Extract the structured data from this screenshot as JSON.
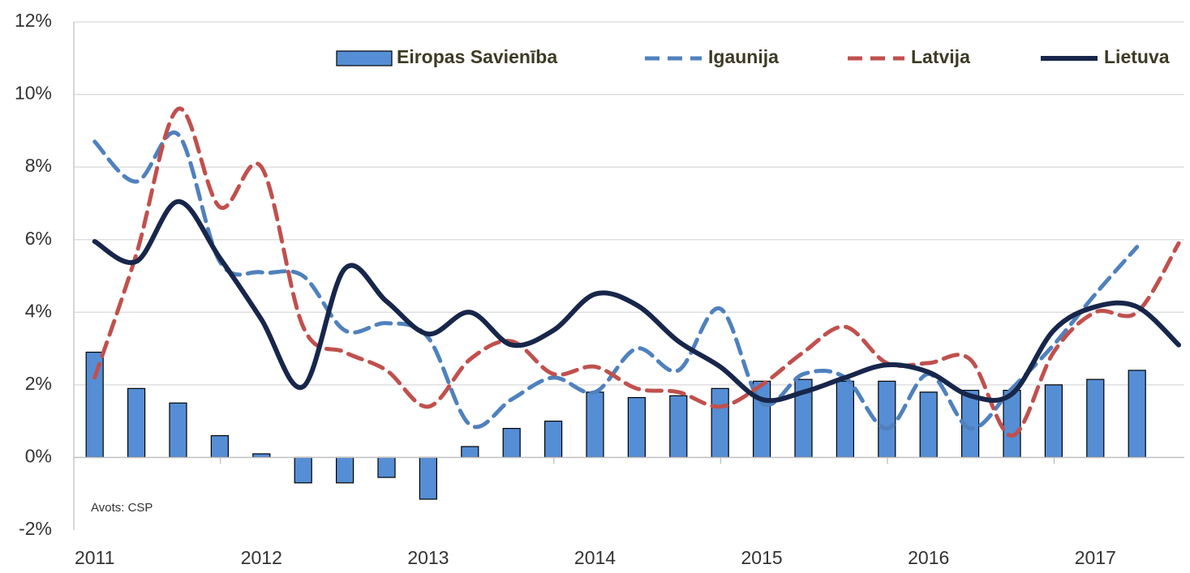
{
  "chart_data": {
    "type": "bar-line",
    "source": "Avots: CSP",
    "categories": [
      "2011",
      null,
      null,
      null,
      "2012",
      null,
      null,
      null,
      "2013",
      null,
      null,
      null,
      "2014",
      null,
      null,
      null,
      "2015",
      null,
      null,
      null,
      "2016",
      null,
      null,
      null,
      "2017",
      null,
      null
    ],
    "series": [
      {
        "name": "Eiropas Savienība",
        "type": "bar",
        "color": "#558ed5",
        "values": [
          2.9,
          1.9,
          1.5,
          0.6,
          0.1,
          -0.7,
          -0.7,
          -0.55,
          -1.15,
          0.3,
          0.8,
          1.0,
          1.8,
          1.65,
          1.7,
          1.9,
          2.1,
          2.15,
          2.1,
          2.1,
          1.8,
          1.85,
          1.85,
          2.0,
          2.15,
          2.4,
          null
        ]
      },
      {
        "name": "Igaunija",
        "type": "line",
        "dashed": true,
        "color": "#4f81bd",
        "values": [
          8.7,
          7.6,
          8.9,
          5.4,
          5.1,
          5.0,
          3.5,
          3.7,
          3.3,
          0.9,
          1.6,
          2.2,
          1.8,
          3.0,
          2.4,
          4.1,
          1.5,
          2.3,
          2.2,
          0.8,
          2.3,
          0.8,
          1.9,
          3.1,
          4.5,
          5.8,
          null
        ]
      },
      {
        "name": "Latvija",
        "type": "line",
        "dashed": true,
        "color": "#c0504d",
        "values": [
          2.2,
          5.6,
          9.6,
          6.9,
          8.0,
          3.6,
          2.9,
          2.4,
          1.4,
          2.7,
          3.2,
          2.3,
          2.5,
          1.9,
          1.8,
          1.4,
          2.0,
          2.9,
          3.6,
          2.6,
          2.6,
          2.7,
          0.6,
          2.9,
          4.0,
          4.0,
          5.9
        ]
      },
      {
        "name": "Lietuva",
        "type": "line",
        "dashed": false,
        "color": "#17264a",
        "values": [
          5.95,
          5.4,
          7.05,
          5.5,
          3.8,
          1.95,
          5.2,
          4.3,
          3.4,
          4.0,
          3.1,
          3.5,
          4.5,
          4.2,
          3.2,
          2.5,
          1.6,
          1.8,
          2.2,
          2.55,
          2.35,
          1.7,
          1.75,
          3.5,
          4.15,
          4.15,
          3.1
        ]
      }
    ],
    "ylim": [
      -2,
      12
    ],
    "yticks": [
      {
        "value": -2,
        "label": "-2%"
      },
      {
        "value": 0,
        "label": "0%"
      },
      {
        "value": 2,
        "label": "2%"
      },
      {
        "value": 4,
        "label": "4%"
      },
      {
        "value": 6,
        "label": "6%"
      },
      {
        "value": 8,
        "label": "8%"
      },
      {
        "value": 10,
        "label": "10%"
      },
      {
        "value": 12,
        "label": "12%"
      }
    ],
    "grid": true,
    "legend": "top"
  }
}
